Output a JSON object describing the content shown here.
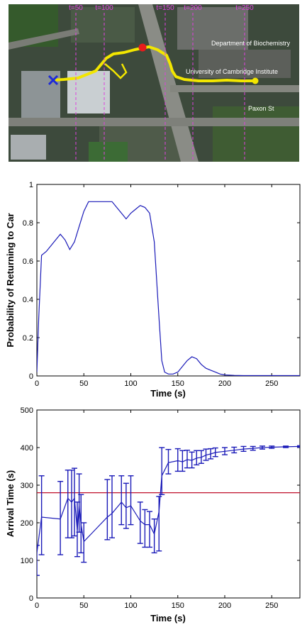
{
  "map": {
    "time_markers": [
      "t=50",
      "t=100",
      "t=150",
      "t=200",
      "t=250"
    ],
    "labels": [
      "Department of Biochemistry",
      "University of Cambridge Institute",
      "Paxon St"
    ],
    "colors": {
      "path": "#f2e600",
      "start": "#1e2bd6",
      "current": "#e81c1c",
      "marker": "#e040e0"
    }
  },
  "chart_data": [
    {
      "type": "line",
      "xlabel": "Time (s)",
      "ylabel": "Probability of Returning to Car",
      "xlim": [
        0,
        280
      ],
      "ylim": [
        0,
        1
      ],
      "xticks": [
        0,
        50,
        100,
        150,
        200,
        250
      ],
      "yticks": [
        0,
        0.2,
        0.4,
        0.6,
        0.8,
        1
      ],
      "grid": false,
      "color": "#1a1ab8",
      "x": [
        0,
        2,
        5,
        10,
        15,
        20,
        25,
        30,
        35,
        40,
        45,
        50,
        55,
        60,
        65,
        70,
        75,
        80,
        85,
        90,
        95,
        100,
        105,
        110,
        115,
        120,
        125,
        130,
        133,
        136,
        140,
        145,
        150,
        155,
        160,
        165,
        170,
        175,
        180,
        185,
        190,
        195,
        200,
        210,
        220,
        250,
        280
      ],
      "y": [
        0.02,
        0.3,
        0.63,
        0.65,
        0.68,
        0.71,
        0.74,
        0.71,
        0.66,
        0.7,
        0.78,
        0.86,
        0.91,
        0.91,
        0.91,
        0.91,
        0.91,
        0.91,
        0.88,
        0.85,
        0.82,
        0.85,
        0.87,
        0.89,
        0.88,
        0.85,
        0.7,
        0.3,
        0.08,
        0.02,
        0.01,
        0.01,
        0.02,
        0.05,
        0.08,
        0.1,
        0.09,
        0.06,
        0.04,
        0.03,
        0.02,
        0.01,
        0.005,
        0.003,
        0.002,
        0.002,
        0.002
      ]
    },
    {
      "type": "line",
      "xlabel": "Time (s)",
      "ylabel": "Arrival Time (s)",
      "xlim": [
        0,
        280
      ],
      "ylim": [
        0,
        500
      ],
      "xticks": [
        0,
        50,
        100,
        150,
        200,
        250
      ],
      "yticks": [
        0,
        100,
        200,
        300,
        400,
        500
      ],
      "grid": false,
      "color": "#1a1ab8",
      "reference_line": {
        "y": 280,
        "color": "#c0102a"
      },
      "x": [
        0,
        5,
        25,
        33,
        37,
        40,
        43,
        45,
        47,
        50,
        75,
        80,
        90,
        95,
        100,
        110,
        115,
        120,
        125,
        130,
        133,
        140,
        150,
        155,
        160,
        165,
        170,
        175,
        180,
        185,
        190,
        200,
        210,
        220,
        230,
        240,
        250,
        265,
        280
      ],
      "y": [
        120,
        215,
        210,
        265,
        255,
        265,
        180,
        245,
        195,
        150,
        215,
        225,
        255,
        240,
        245,
        205,
        195,
        195,
        170,
        230,
        325,
        360,
        365,
        362,
        368,
        366,
        372,
        374,
        380,
        383,
        387,
        390,
        393,
        396,
        398,
        400,
        401,
        402,
        403
      ],
      "err_low": [
        60,
        100,
        95,
        105,
        95,
        100,
        70,
        70,
        75,
        55,
        60,
        65,
        60,
        55,
        50,
        60,
        60,
        60,
        50,
        105,
        50,
        30,
        28,
        25,
        22,
        20,
        18,
        16,
        14,
        13,
        11,
        9,
        7,
        6,
        5,
        4,
        3,
        2,
        2
      ],
      "err_high": [
        20,
        110,
        100,
        75,
        85,
        80,
        75,
        85,
        80,
        50,
        100,
        100,
        70,
        65,
        80,
        50,
        40,
        35,
        40,
        40,
        75,
        35,
        32,
        30,
        25,
        22,
        20,
        18,
        16,
        14,
        12,
        10,
        8,
        7,
        5,
        4,
        3,
        2,
        2
      ]
    }
  ]
}
